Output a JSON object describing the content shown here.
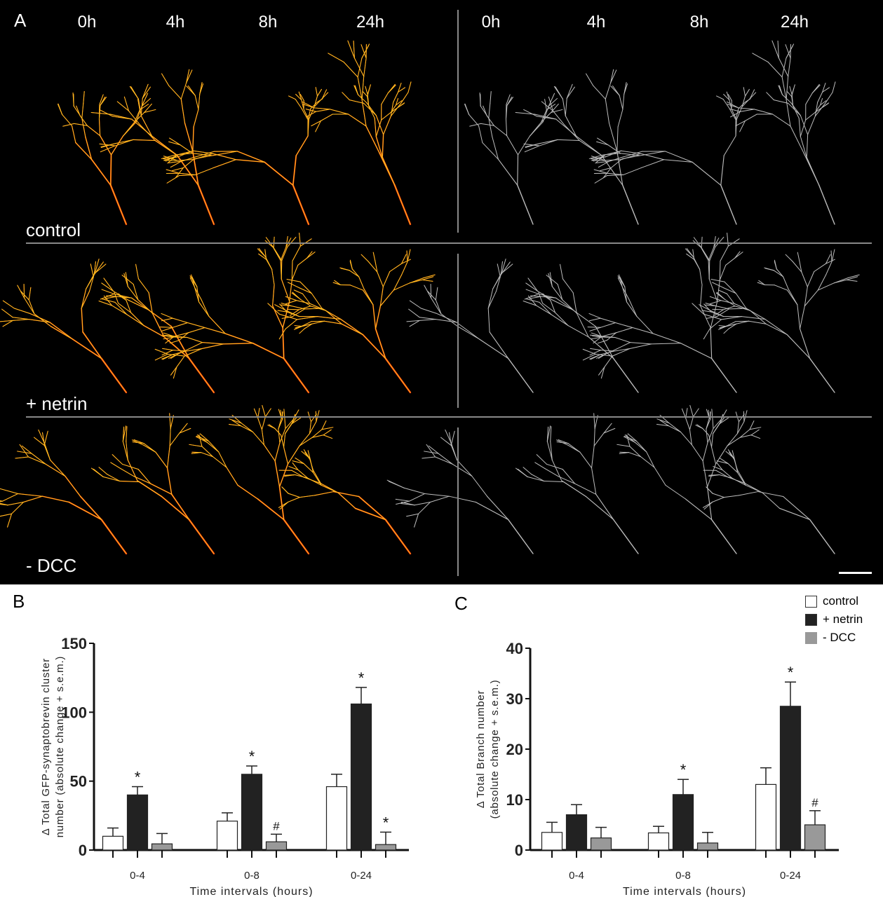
{
  "panel_a": {
    "label": "A",
    "time_labels": [
      "0h",
      "4h",
      "8h",
      "24h"
    ],
    "rows": [
      "control",
      "+ netrin",
      "- DCC"
    ],
    "left_channel_color": "#ff4010",
    "right_channel_color": "#d0d0d0"
  },
  "legend": [
    {
      "name": "control",
      "color": "#ffffff"
    },
    {
      "name": "+ netrin",
      "color": "#222222"
    },
    {
      "name": "- DCC",
      "color": "#999999"
    }
  ],
  "chart_data": [
    {
      "panel": "B",
      "type": "bar",
      "categories": [
        "0-4",
        "0-8",
        "0-24"
      ],
      "xlabel": "Time intervals (hours)",
      "ylabel": "Δ Total GFP-synaptobrevin cluster number (absolute change + s.e.m.)",
      "ylabel_lines": [
        "Δ Total GFP-synaptobrevin cluster",
        "number (absolute change + s.e.m.)"
      ],
      "ylim": [
        0,
        150
      ],
      "yticks": [
        "0",
        "50",
        "100",
        "150"
      ],
      "series": [
        {
          "name": "control",
          "values": [
            10,
            21,
            46
          ],
          "errors": [
            6,
            6,
            9
          ],
          "marks": [
            "",
            "",
            ""
          ]
        },
        {
          "name": "+ netrin",
          "values": [
            40,
            55,
            106
          ],
          "errors": [
            6,
            6,
            12
          ],
          "marks": [
            "*",
            "*",
            "*"
          ]
        },
        {
          "name": "- DCC",
          "values": [
            4.5,
            6,
            4
          ],
          "errors": [
            7.5,
            5.5,
            9
          ],
          "marks": [
            "",
            "#",
            "*"
          ]
        }
      ]
    },
    {
      "panel": "C",
      "type": "bar",
      "categories": [
        "0-4",
        "0-8",
        "0-24"
      ],
      "xlabel": "Time intervals (hours)",
      "ylabel": "Δ Total Branch number (absolute change + s.e.m.)",
      "ylabel_lines": [
        "Δ Total Branch number",
        "(absolute change + s.e.m.)"
      ],
      "ylim": [
        0,
        40
      ],
      "yticks": [
        "0",
        "10",
        "20",
        "30",
        "40"
      ],
      "series": [
        {
          "name": "control",
          "values": [
            3.5,
            3.4,
            13
          ],
          "errors": [
            2,
            1.3,
            3.3
          ],
          "marks": [
            "",
            "",
            ""
          ]
        },
        {
          "name": "+ netrin",
          "values": [
            7,
            11,
            28.5
          ],
          "errors": [
            2,
            3,
            4.8
          ],
          "marks": [
            "",
            "*",
            "*"
          ]
        },
        {
          "name": "- DCC",
          "values": [
            2.4,
            1.4,
            5
          ],
          "errors": [
            2.1,
            2.1,
            2.8
          ],
          "marks": [
            "",
            "",
            "#"
          ]
        }
      ]
    }
  ]
}
